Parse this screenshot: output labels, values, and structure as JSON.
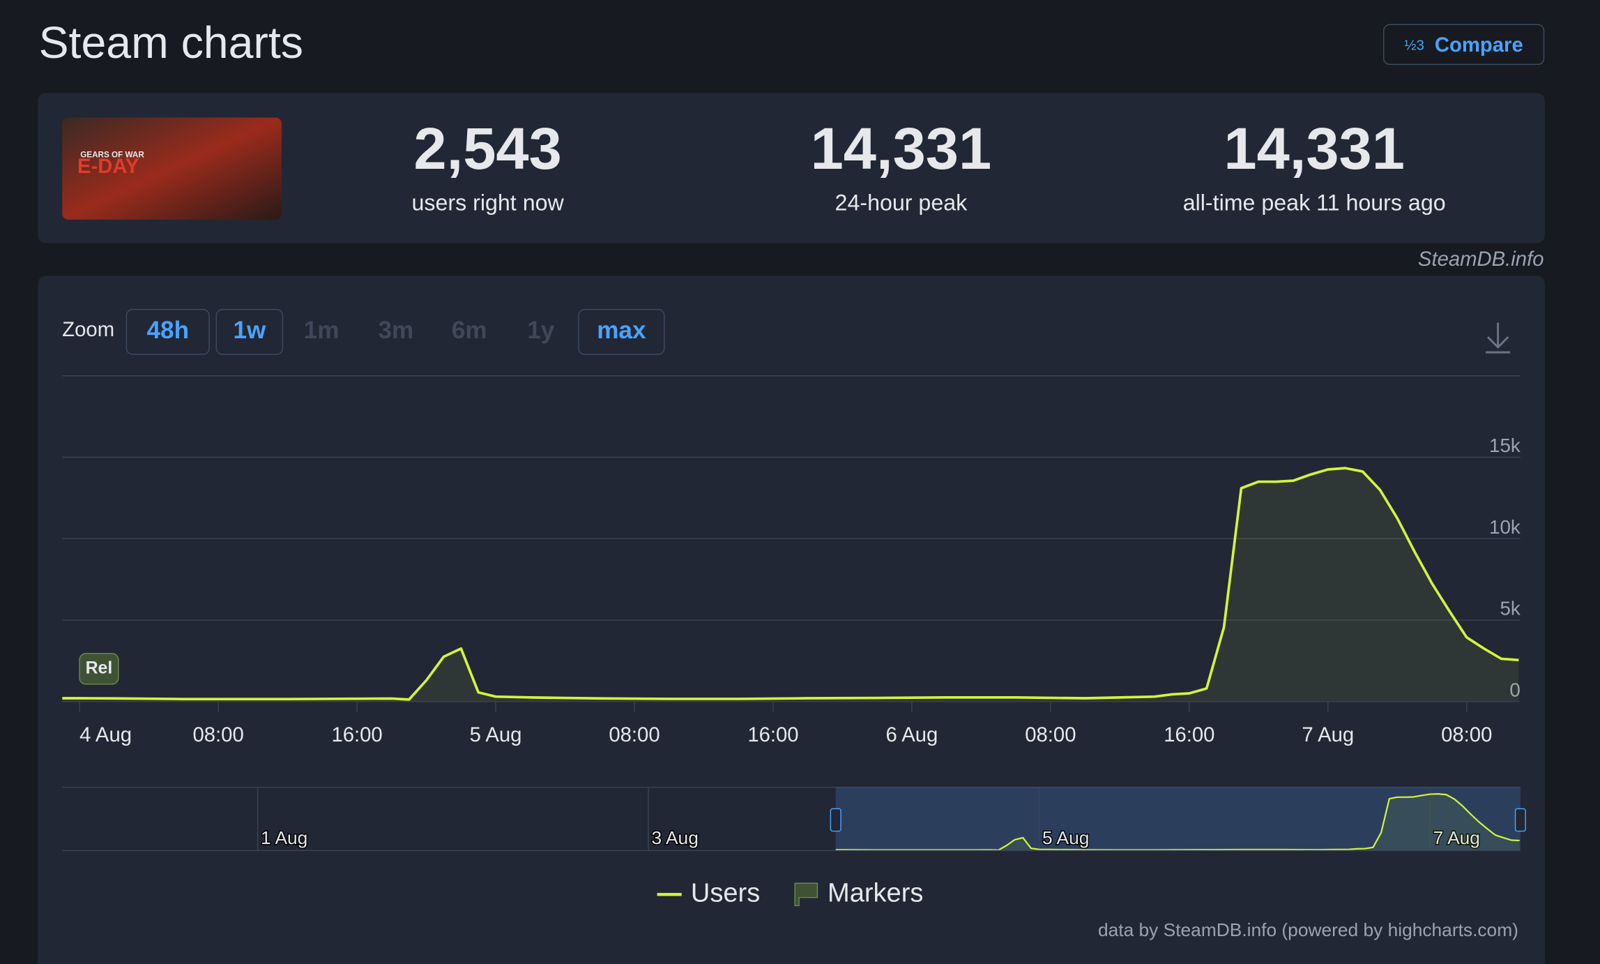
{
  "header": {
    "title": "Steam charts",
    "compare": "Compare"
  },
  "game_image": {
    "brand": "GEARS OF WAR",
    "name": "E-DAY"
  },
  "stats": [
    {
      "value": "2,543",
      "label": "users right now"
    },
    {
      "value": "14,331",
      "label": "24-hour peak"
    },
    {
      "value": "14,331",
      "label": "all-time peak 11 hours ago"
    }
  ],
  "source": "SteamDB.info",
  "zoom": {
    "label": "Zoom",
    "buttons": [
      "48h",
      "1w",
      "1m",
      "3m",
      "6m",
      "1y",
      "max"
    ]
  },
  "chart_data": {
    "type": "line",
    "x": [
      -1,
      0,
      2,
      4,
      6,
      8,
      10,
      12,
      14,
      16,
      18,
      19,
      20,
      21,
      22,
      23,
      24,
      26,
      28,
      30,
      34,
      38,
      42,
      46,
      50,
      54,
      58,
      62,
      63,
      64,
      65,
      66,
      67,
      68,
      69,
      70,
      71,
      72,
      73,
      74,
      75,
      76,
      77,
      78,
      79,
      80,
      81,
      82,
      83
    ],
    "series": [
      {
        "name": "Users",
        "color": "#d2f53c",
        "values": [
          200,
          200,
          190,
          170,
          150,
          150,
          150,
          150,
          160,
          170,
          180,
          120,
          1300,
          2750,
          3250,
          560,
          300,
          250,
          220,
          190,
          160,
          160,
          200,
          220,
          250,
          250,
          200,
          300,
          440,
          500,
          800,
          4560,
          13100,
          13500,
          13500,
          13560,
          13940,
          14250,
          14331,
          14125,
          13000,
          11250,
          9190,
          7250,
          5560,
          3940,
          3250,
          2625,
          2543
        ]
      }
    ],
    "markers_legend": "Markers",
    "markers": [
      {
        "label": "Rel",
        "x": 0
      }
    ],
    "xlim": [
      -1,
      83.1
    ],
    "xticks": [
      {
        "value": 0,
        "label": "4 Aug"
      },
      {
        "value": 8,
        "label": "08:00"
      },
      {
        "value": 16,
        "label": "16:00"
      },
      {
        "value": 24,
        "label": "5 Aug"
      },
      {
        "value": 32,
        "label": "08:00"
      },
      {
        "value": 40,
        "label": "16:00"
      },
      {
        "value": 48,
        "label": "6 Aug"
      },
      {
        "value": 56,
        "label": "08:00"
      },
      {
        "value": 64,
        "label": "16:00"
      },
      {
        "value": 72,
        "label": "7 Aug"
      },
      {
        "value": 80,
        "label": "08:00"
      }
    ],
    "ylim": [
      0,
      20000
    ],
    "yticks": [
      0,
      {
        "value": 5000,
        "label": "5k"
      },
      {
        "value": 10000,
        "label": "10k"
      },
      {
        "value": 15000,
        "label": "15k"
      }
    ],
    "grid": true,
    "navigator": {
      "xlim": [
        -96,
        83.1
      ],
      "ylim": [
        0,
        16000
      ],
      "xticks": [
        {
          "value": -72,
          "label": "1 Aug"
        },
        {
          "value": -24,
          "label": "3 Aug"
        },
        {
          "value": 24,
          "label": "5 Aug"
        },
        {
          "value": 72,
          "label": "7 Aug"
        }
      ]
    },
    "credit": "data by SteamDB.info (powered by highcharts.com)"
  }
}
